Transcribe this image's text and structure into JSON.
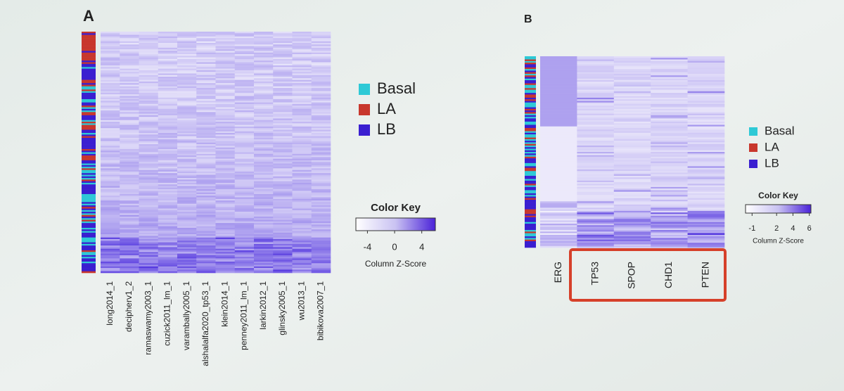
{
  "panels": [
    {
      "label": "A",
      "columns": [
        "long2014_1",
        "decipherv1_2",
        "ramaswamy2003_1",
        "cuzick2011_lm_1",
        "varambally2005_1",
        "alshalalfa2020_tp53_1",
        "klein2014_1",
        "penney2011_lm_1",
        "larkin2012_1",
        "glinsky2005_1",
        "wu2013_1",
        "bibikova2007_1"
      ],
      "legend": [
        {
          "name": "Basal",
          "color": "#2ec9d6"
        },
        {
          "name": "LA",
          "color": "#c8372d"
        },
        {
          "name": "LB",
          "color": "#3a1fd0"
        }
      ],
      "color_key": {
        "title": "Color Key",
        "range": [
          -5.7,
          6
        ],
        "ticks": [
          -4,
          0,
          4
        ],
        "axis_label": "Column Z-Score"
      }
    },
    {
      "label": "B",
      "columns": [
        "ERG",
        "TP53",
        "SPOP",
        "CHD1",
        "PTEN"
      ],
      "legend": [
        {
          "name": "Basal",
          "color": "#2ec9d6"
        },
        {
          "name": "LA",
          "color": "#c8372d"
        },
        {
          "name": "LB",
          "color": "#3a1fd0"
        }
      ],
      "color_key": {
        "title": "Color Key",
        "range": [
          -1.8,
          6.2
        ],
        "ticks": [
          -1,
          2,
          4,
          6
        ],
        "axis_label": "Column Z-Score"
      }
    }
  ]
}
